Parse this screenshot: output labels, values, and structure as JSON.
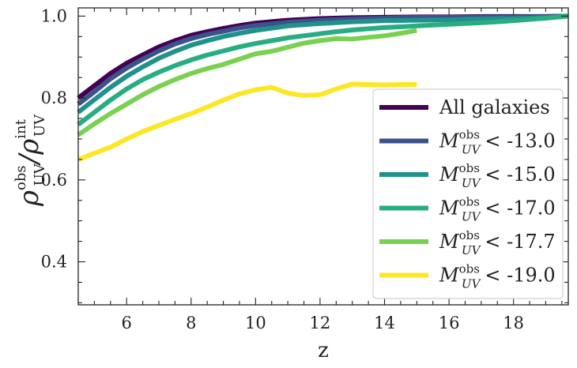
{
  "chart_data": {
    "type": "line",
    "title": "",
    "xlabel": "z",
    "ylabel": {
      "symbol": "ρ",
      "obs_sup": "obs",
      "obs_sub": "UV",
      "slash": "/",
      "int_sup": "int",
      "int_sub": "UV"
    },
    "xlim": [
      4.5,
      19.7
    ],
    "ylim": [
      0.295,
      1.02
    ],
    "xticks": [
      6,
      8,
      10,
      12,
      14,
      16,
      18
    ],
    "xtick_labels": [
      "6",
      "8",
      "10",
      "12",
      "14",
      "16",
      "18"
    ],
    "yticks": [
      0.4,
      0.6,
      0.8,
      1.0
    ],
    "ytick_labels": [
      "0.4",
      "0.6",
      "0.8",
      "1.0"
    ],
    "legend_position": "lower-right",
    "series": [
      {
        "name": "All galaxies",
        "label_main": "All galaxies",
        "label_comp": "",
        "label_value": "",
        "color": "#440154",
        "x": [
          4.5,
          5,
          5.5,
          6,
          6.5,
          7,
          7.5,
          8,
          8.5,
          9,
          9.5,
          10,
          11,
          12,
          13,
          14,
          15,
          16,
          17,
          18,
          19,
          19.7
        ],
        "y": [
          0.8,
          0.83,
          0.86,
          0.885,
          0.905,
          0.925,
          0.94,
          0.953,
          0.962,
          0.97,
          0.977,
          0.983,
          0.99,
          0.994,
          0.996,
          0.997,
          0.998,
          0.998,
          0.999,
          0.999,
          0.999,
          1.0
        ]
      },
      {
        "name": "M_UV^obs < -13.0",
        "label_main": "M",
        "label_comp": "<",
        "label_value": "-13.0",
        "color": "#3b528b",
        "x": [
          4.5,
          5,
          5.5,
          6,
          6.5,
          7,
          7.5,
          8,
          8.5,
          9,
          9.5,
          10,
          11,
          12,
          13,
          14,
          15,
          16,
          17,
          18,
          19,
          19.7
        ],
        "y": [
          0.785,
          0.815,
          0.847,
          0.873,
          0.895,
          0.915,
          0.932,
          0.945,
          0.955,
          0.963,
          0.971,
          0.977,
          0.985,
          0.99,
          0.993,
          0.995,
          0.997,
          0.997,
          0.998,
          0.998,
          0.999,
          1.0
        ]
      },
      {
        "name": "M_UV^obs < -15.0",
        "label_main": "M",
        "label_comp": "<",
        "label_value": "-15.0",
        "color": "#21918c",
        "x": [
          4.5,
          5,
          5.5,
          6,
          6.5,
          7,
          7.5,
          8,
          8.5,
          9,
          9.5,
          10,
          11,
          12,
          13,
          14,
          15,
          16,
          17,
          18,
          19,
          19.7
        ],
        "y": [
          0.765,
          0.796,
          0.826,
          0.853,
          0.876,
          0.897,
          0.914,
          0.929,
          0.94,
          0.95,
          0.958,
          0.965,
          0.976,
          0.982,
          0.986,
          0.989,
          0.99,
          0.991,
          0.993,
          0.994,
          0.996,
          1.0
        ]
      },
      {
        "name": "M_UV^obs < -17.0",
        "label_main": "M",
        "label_comp": "<",
        "label_value": "-17.0",
        "color": "#27ad81",
        "x": [
          4.5,
          5,
          5.5,
          6,
          6.5,
          7,
          7.5,
          8,
          8.5,
          9,
          9.5,
          10,
          10.5,
          11,
          11.5,
          12,
          12.5,
          13,
          13.5,
          14,
          14.5,
          15,
          15.5,
          16,
          16.5,
          17,
          17.5,
          18,
          18.5,
          19,
          19.7
        ],
        "y": [
          0.735,
          0.765,
          0.795,
          0.822,
          0.845,
          0.863,
          0.879,
          0.893,
          0.905,
          0.915,
          0.925,
          0.933,
          0.94,
          0.947,
          0.952,
          0.957,
          0.962,
          0.966,
          0.969,
          0.972,
          0.974,
          0.976,
          0.978,
          0.98,
          0.982,
          0.984,
          0.986,
          0.989,
          0.992,
          0.995,
          1.0
        ]
      },
      {
        "name": "M_UV^obs < -17.7",
        "label_main": "M",
        "label_comp": "<",
        "label_value": "-17.7",
        "color": "#7ad151",
        "x": [
          4.5,
          5,
          5.5,
          6,
          6.5,
          7,
          7.5,
          8,
          8.5,
          9,
          9.5,
          10,
          10.5,
          11,
          11.5,
          12,
          12.5,
          13,
          13.5,
          14,
          14.5,
          15
        ],
        "y": [
          0.71,
          0.737,
          0.762,
          0.785,
          0.808,
          0.828,
          0.845,
          0.86,
          0.872,
          0.882,
          0.895,
          0.908,
          0.914,
          0.924,
          0.934,
          0.94,
          0.945,
          0.944,
          0.948,
          0.952,
          0.958,
          0.965
        ]
      },
      {
        "name": "M_UV^obs < -19.0",
        "label_main": "M",
        "label_comp": "<",
        "label_value": "-19.0",
        "color": "#fde725",
        "x": [
          4.5,
          5,
          5.5,
          6,
          6.5,
          7,
          7.5,
          8,
          8.5,
          9,
          9.5,
          10,
          10.5,
          11,
          11.5,
          12,
          12.5,
          13,
          13.5,
          14,
          14.5,
          15
        ],
        "y": [
          0.65,
          0.665,
          0.68,
          0.7,
          0.718,
          0.733,
          0.748,
          0.762,
          0.778,
          0.795,
          0.81,
          0.82,
          0.826,
          0.812,
          0.806,
          0.808,
          0.822,
          0.834,
          0.833,
          0.832,
          0.833,
          0.833
        ]
      }
    ]
  }
}
